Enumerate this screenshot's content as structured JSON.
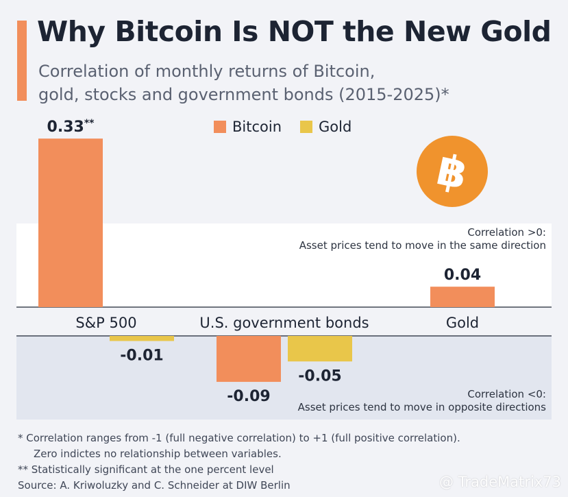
{
  "header": {
    "title": "Why Bitcoin Is NOT the New Gold",
    "subtitle_line1": "Correlation of monthly returns of Bitcoin,",
    "subtitle_line2": "gold, stocks and government bonds (2015-2025)*"
  },
  "colors": {
    "accent": "#f28e5b",
    "bitcoin": "#f28e5b",
    "gold": "#e9c64a",
    "negative_zone": "#e2e6ef",
    "positive_zone": "#ffffff",
    "bitcoin_logo": "#f0932d"
  },
  "chart_data": {
    "type": "bar",
    "categories": [
      "S&P 500",
      "U.S. government bonds",
      "Gold"
    ],
    "series": [
      {
        "name": "Bitcoin",
        "values": [
          0.33,
          -0.09,
          0.04
        ]
      },
      {
        "name": "Gold",
        "values": [
          -0.01,
          -0.05,
          null
        ]
      }
    ],
    "data_labels": [
      [
        "0.33**",
        "-0.09",
        "0.04"
      ],
      [
        "-0.01",
        "-0.05",
        ""
      ]
    ],
    "legend": [
      "Bitcoin",
      "Gold"
    ],
    "legend_position": "top",
    "grid": false,
    "ylim": [
      -0.11,
      0.34
    ]
  },
  "zones": {
    "positive_title": "Correlation >0:",
    "positive_text": "Asset prices tend to move in the same direction",
    "negative_title": "Correlation <0:",
    "negative_text": "Asset prices tend to move in opposite directions"
  },
  "footnotes": {
    "line1": "*   Correlation ranges from -1 (full negative correlation) to +1 (full positive correlation).",
    "line1b": "Zero indictes no relationship between variables.",
    "line2": "** Statistically significant at the one percent level",
    "source": "Source: A. Kriwoluzky and C. Schneider at DIW Berlin"
  },
  "watermark": "@ TradeMatrix73",
  "icons": {
    "bitcoin_logo": "bitcoin-icon"
  }
}
